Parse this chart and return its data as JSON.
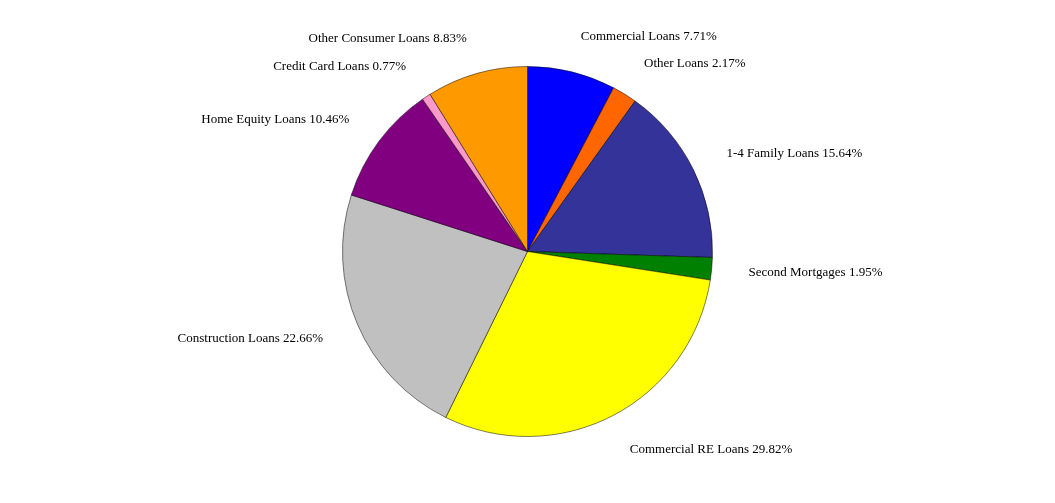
{
  "chart_data": {
    "type": "pie",
    "categories": [
      "Commercial Loans",
      "Other Loans",
      "1-4 Family Loans",
      "Second Mortgages",
      "Commercial RE Loans",
      "Construction Loans",
      "Home Equity Loans",
      "Credit Card Loans",
      "Other Consumer Loans"
    ],
    "values": [
      7.71,
      2.17,
      15.64,
      1.95,
      29.82,
      22.66,
      10.46,
      0.77,
      8.83
    ],
    "value_labels": [
      "7.71%",
      "2.17%",
      "15.64%",
      "1.95%",
      "29.82%",
      "22.66%",
      "10.46%",
      "0.77%",
      "8.83%"
    ],
    "colors": [
      "#0000ff",
      "#ff6600",
      "#333399",
      "#008000",
      "#ffff00",
      "#c0c0c0",
      "#800080",
      "#ff99cc",
      "#ff9900"
    ],
    "legend": false
  }
}
